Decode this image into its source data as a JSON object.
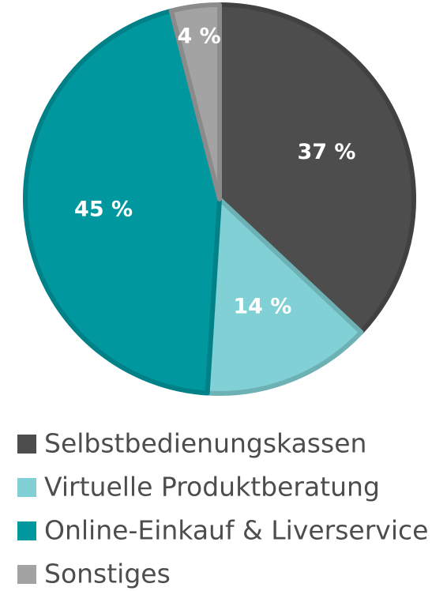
{
  "chart_data": {
    "type": "pie",
    "categories": [
      "Selbstbedienungskassen",
      "Virtuelle Produktberatung",
      "Online-Einkauf & Liverservice",
      "Sonstiges"
    ],
    "values": [
      37,
      14,
      45,
      4
    ],
    "value_labels": [
      "37 %",
      "14 %",
      "45 %",
      "4 %"
    ],
    "colors": [
      "#4d4d4d",
      "#80d0d5",
      "#00979f",
      "#a3a3a3"
    ]
  }
}
